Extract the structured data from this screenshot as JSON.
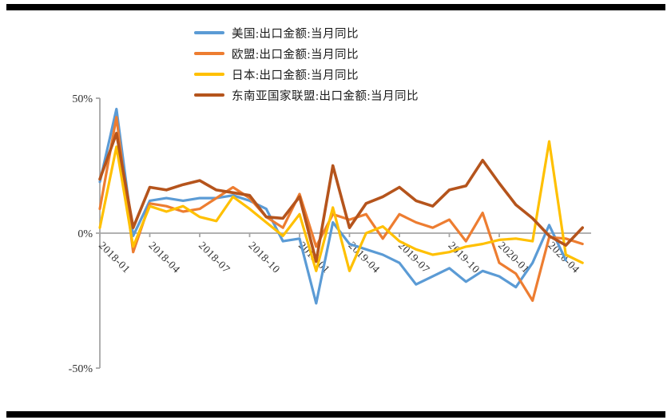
{
  "chart_data": {
    "type": "line",
    "title": "",
    "xlabel": "",
    "ylabel": "",
    "ylim": [
      -50,
      50
    ],
    "grid": "zero-line-only",
    "legend_position": "top",
    "yticks": [
      {
        "v": 50,
        "label": "50%"
      },
      {
        "v": 0,
        "label": "0%"
      },
      {
        "v": -50,
        "label": "-50%"
      }
    ],
    "x": [
      "2018-01",
      "2018-02",
      "2018-03",
      "2018-04",
      "2018-05",
      "2018-06",
      "2018-07",
      "2018-08",
      "2018-09",
      "2018-10",
      "2018-11",
      "2018-12",
      "2019-01",
      "2019-02",
      "2019-03",
      "2019-04",
      "2019-05",
      "2019-06",
      "2019-07",
      "2019-08",
      "2019-09",
      "2019-10",
      "2019-11",
      "2019-12",
      "2020-01",
      "2020-02",
      "2020-03",
      "2020-04",
      "2020-05",
      "2020-06"
    ],
    "x_tick_every": 3,
    "x_tick_labels": [
      "2018-01",
      "2018-04",
      "2018-07",
      "2018-10",
      "2019-01",
      "2019-04",
      "2019-07",
      "2019-10",
      "2020-01",
      "2020-04"
    ],
    "series": [
      {
        "name": "美国:出口金额:当月同比",
        "color": "#5B9BD5",
        "values": [
          19,
          46,
          -1,
          12,
          13,
          12,
          13,
          13,
          14,
          12,
          9,
          -3,
          -2,
          -26,
          4,
          -4,
          -6,
          -8,
          -11,
          -19,
          -16,
          -13,
          -18,
          -14,
          -16,
          -20,
          -11,
          3,
          -10,
          null
        ]
      },
      {
        "name": "欧盟:出口金额:当月同比",
        "color": "#ED7D31",
        "values": [
          9,
          43,
          -7,
          11,
          10,
          8,
          9,
          13,
          17,
          13,
          6,
          2,
          14.5,
          -5,
          7,
          5,
          7,
          -2,
          7,
          4,
          2,
          5,
          -3,
          7.5,
          -11,
          -15,
          -25,
          -1.5,
          -2,
          -4
        ]
      },
      {
        "name": "日本:出口金额:当月同比",
        "color": "#FFC000",
        "values": [
          2,
          32,
          -5,
          10,
          8,
          10,
          6,
          4.5,
          13.5,
          9,
          4,
          -1,
          7,
          -14,
          9.5,
          -14,
          0,
          2.5,
          -3,
          -6,
          -8,
          -7,
          -5,
          -4,
          -2.5,
          -2,
          -3,
          34,
          -8,
          -11
        ]
      },
      {
        "name": "东南亚国家联盟:出口金额:当月同比",
        "color": "#B5541C",
        "values": [
          20,
          37,
          2,
          17,
          16,
          18,
          19.5,
          16,
          15,
          14,
          6,
          5.5,
          13.5,
          -10.5,
          25,
          2,
          11,
          13.5,
          17,
          12,
          10,
          16,
          17.5,
          27,
          18.5,
          10.5,
          5.5,
          -1,
          -4.5,
          2
        ]
      }
    ]
  }
}
